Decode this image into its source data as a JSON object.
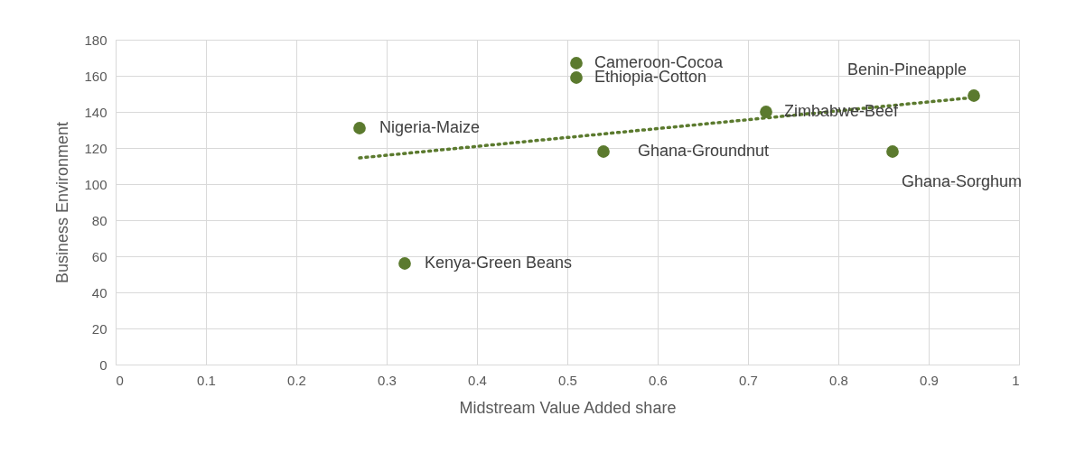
{
  "chart_data": {
    "type": "scatter",
    "xlabel": "Midstream Value Added share",
    "ylabel": "Business Environment",
    "xlim": [
      0,
      1
    ],
    "xticks": [
      0,
      0.1,
      0.2,
      0.3,
      0.4,
      0.5,
      0.6,
      0.7,
      0.8,
      0.9,
      1
    ],
    "ylim": [
      0,
      180
    ],
    "yticks": [
      0,
      20,
      40,
      60,
      80,
      100,
      120,
      140,
      160,
      180
    ],
    "grid": true,
    "marker": "circle",
    "series": [
      {
        "color": "#5b7a2e",
        "x": [
          0.27,
          0.32,
          0.51,
          0.51,
          0.54,
          0.72,
          0.86,
          0.95
        ],
        "values": [
          131,
          56,
          167,
          159,
          118,
          140,
          118,
          149
        ]
      },
      {
        "type": "line",
        "color": "#5b7a2e",
        "line_style": "dotted",
        "marker": "none",
        "x": [
          0.27,
          0.95
        ],
        "values": [
          114.5,
          148
        ]
      }
    ],
    "annotations": [
      {
        "text": "Nigeria-Maize",
        "x": 0.27,
        "y": 131
      },
      {
        "text": "Kenya-Green Beans",
        "x": 0.32,
        "y": 56
      },
      {
        "text": "Cameroon-Cocoa",
        "x": 0.51,
        "y": 167
      },
      {
        "text": "Ethiopia-Cotton",
        "x": 0.51,
        "y": 159
      },
      {
        "text": "Ghana-Groundnut",
        "x": 0.54,
        "y": 118
      },
      {
        "text": "Zimbabwe-Beef",
        "x": 0.72,
        "y": 140
      },
      {
        "text": "Ghana-Sorghum",
        "x": 0.86,
        "y": 118
      },
      {
        "text": "Benin-Pineapple",
        "x": 0.95,
        "y": 149
      }
    ]
  }
}
